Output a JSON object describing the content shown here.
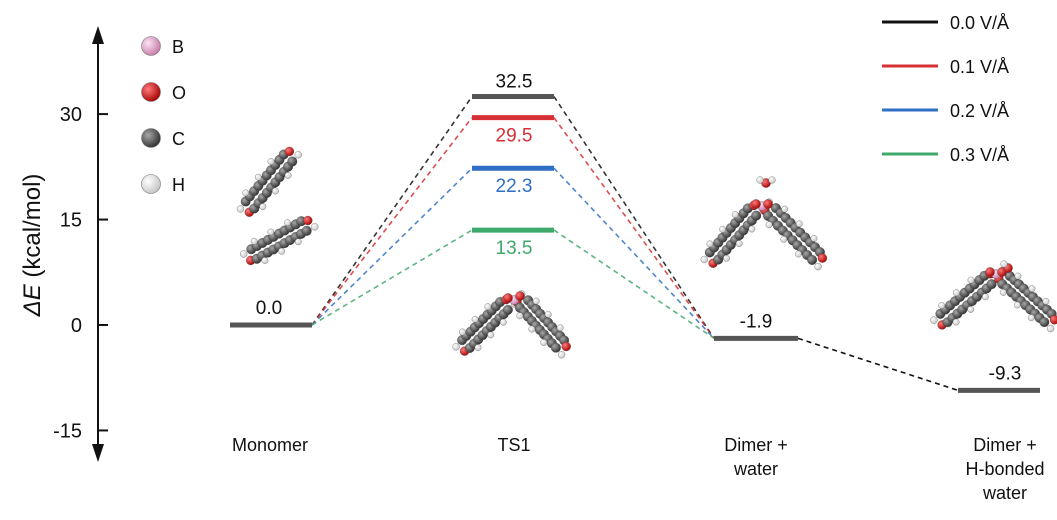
{
  "chart_data": {
    "type": "line",
    "title": "",
    "ylabel_symbol": "ΔE",
    "ylabel_unit": "(kcal/mol)",
    "ylim": [
      -15,
      45
    ],
    "yticks": [
      -15,
      0,
      15,
      30
    ],
    "ytick_labels": [
      "-15",
      "0",
      "15",
      "30"
    ],
    "grid": false,
    "legend_position": "top-right",
    "categories": [
      {
        "lines": [
          "Monomer"
        ]
      },
      {
        "lines": [
          "TS1"
        ]
      },
      {
        "lines": [
          "Dimer +",
          "water"
        ]
      },
      {
        "lines": [
          "Dimer +",
          "H-bonded",
          "water"
        ]
      }
    ],
    "series": [
      {
        "name": "0.0 V/Å",
        "color": "#111111",
        "ts1": 32.5,
        "ts1_label": "32.5"
      },
      {
        "name": "0.1 V/Å",
        "color": "#d62f35",
        "ts1": 29.5,
        "ts1_label": "29.5"
      },
      {
        "name": "0.2 V/Å",
        "color": "#2f6fc5",
        "ts1": 22.3,
        "ts1_label": "22.3"
      },
      {
        "name": "0.3 V/Å",
        "color": "#3fa96c",
        "ts1": 13.5,
        "ts1_label": "13.5"
      }
    ],
    "common_levels": [
      {
        "state": 0,
        "value": 0.0,
        "label": "0.0"
      },
      {
        "state": 2,
        "value": -1.9,
        "label": "-1.9"
      },
      {
        "state": 3,
        "value": -9.3,
        "label": "-9.3"
      }
    ],
    "level_color": "#555555",
    "dimer_to_hbonded_color": "#111111",
    "atom_legend": [
      {
        "symbol": "B",
        "color": "#e8a6d0",
        "name": "boron-atom"
      },
      {
        "symbol": "O",
        "color": "#e01414",
        "name": "oxygen-atom"
      },
      {
        "symbol": "C",
        "color": "#5a5a5a",
        "name": "carbon-atom"
      },
      {
        "symbol": "H",
        "color": "#f2f2f2",
        "name": "hydrogen-atom"
      }
    ]
  }
}
